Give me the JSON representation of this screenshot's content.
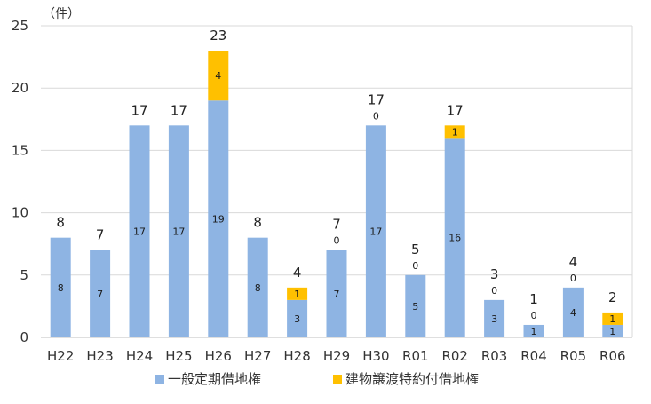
{
  "chart_data": {
    "type": "bar",
    "stacked": true,
    "unit_label": "（件）",
    "categories": [
      "H22",
      "H23",
      "H24",
      "H25",
      "H26",
      "H27",
      "H28",
      "H29",
      "H30",
      "R01",
      "R02",
      "R03",
      "R04",
      "R05",
      "R06"
    ],
    "series": [
      {
        "name": "一般定期借地権",
        "color": "#8eb4e3",
        "values": [
          8,
          7,
          17,
          17,
          19,
          8,
          3,
          7,
          17,
          5,
          16,
          3,
          1,
          4,
          1
        ],
        "labels": [
          "8",
          "7",
          "17",
          "17",
          "19",
          "8",
          "3",
          "7",
          "17",
          "5",
          "16",
          "3",
          "1",
          "4",
          "1"
        ]
      },
      {
        "name": "建物譲渡特約付借地権",
        "color": "#ffc000",
        "values": [
          0,
          0,
          0,
          0,
          4,
          0,
          1,
          0,
          0,
          0,
          1,
          0,
          0,
          0,
          1
        ],
        "labels": [
          "",
          "",
          "",
          "",
          "4",
          "",
          "1",
          "0",
          "0",
          "0",
          "1",
          "0",
          "0",
          "0",
          "1"
        ]
      }
    ],
    "totals": [
      "8",
      "7",
      "17",
      "17",
      "23",
      "8",
      "4",
      "7",
      "17",
      "5",
      "17",
      "3",
      "1",
      "4",
      "2"
    ],
    "ylim": [
      0,
      25
    ],
    "yticks": [
      "0",
      "5",
      "10",
      "15",
      "20",
      "25"
    ],
    "ytick_values": [
      0,
      5,
      10,
      15,
      20,
      25
    ],
    "grid": true,
    "legend_position": "bottom"
  }
}
